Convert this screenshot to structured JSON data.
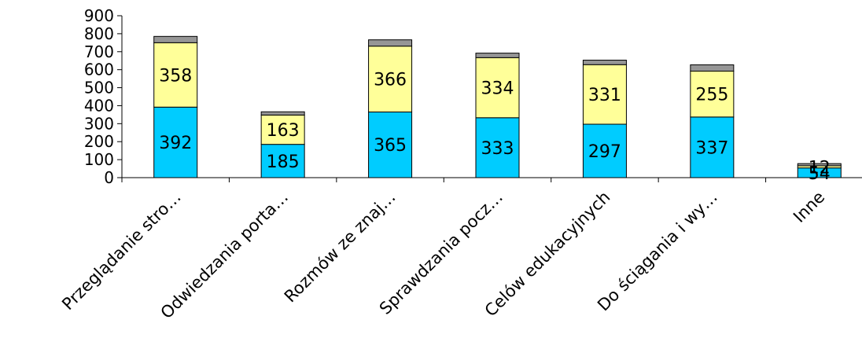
{
  "chart_data": {
    "type": "bar",
    "stacked": true,
    "categories": [
      "Przeglądanie stro…",
      "Odwiedzania porta…",
      "Rozmów ze znaj…",
      "Sprawdzania pocz…",
      "Celów edukacyjnych",
      "Do ściągania i wy…",
      "Inne"
    ],
    "series": [
      {
        "values": [
          392,
          185,
          365,
          333,
          297,
          337,
          54
        ],
        "color": "#00ccff",
        "show_labels": true
      },
      {
        "values": [
          358,
          163,
          366,
          334,
          331,
          255,
          12
        ],
        "color": "#ffff99",
        "show_labels": true
      },
      {
        "values": [
          35,
          18,
          35,
          25,
          25,
          35,
          12
        ],
        "color": "#969696",
        "show_labels": false
      }
    ],
    "ylim": [
      0,
      900
    ],
    "y_ticks": [
      "0",
      "100",
      "200",
      "300",
      "400",
      "500",
      "600",
      "700",
      "800",
      "900"
    ],
    "grid": false,
    "legend": "none"
  }
}
